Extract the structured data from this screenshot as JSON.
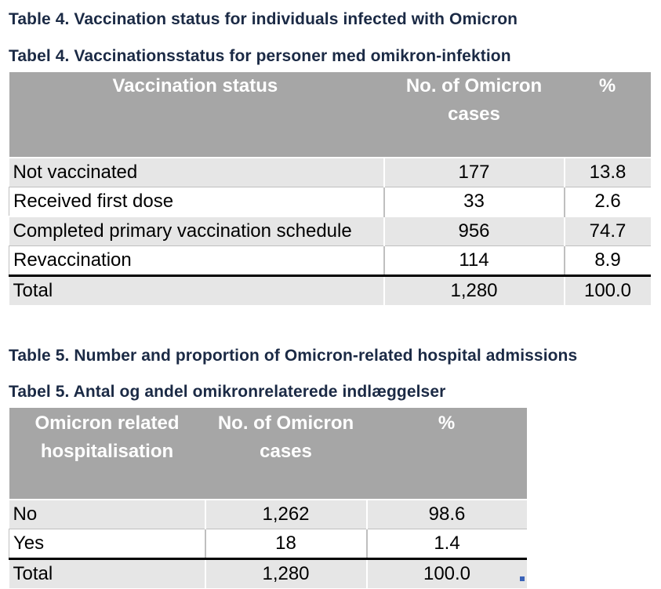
{
  "table4": {
    "title_en": "Table 4. Vaccination status for individuals infected with Omicron",
    "title_da": "Tabel 4. Vaccinationsstatus for personer med omikron-infektion",
    "headers": [
      "Vaccination status",
      "No. of Omicron cases",
      "%"
    ],
    "rows": [
      {
        "label": "Not vaccinated",
        "cases": "177",
        "pct": "13.8"
      },
      {
        "label": "Received first dose",
        "cases": "33",
        "pct": "2.6"
      },
      {
        "label": "Completed primary vaccination schedule",
        "cases": "956",
        "pct": "74.7"
      },
      {
        "label": "Revaccination",
        "cases": "114",
        "pct": "8.9"
      }
    ],
    "total": {
      "label": "Total",
      "cases": "1,280",
      "pct": "100.0"
    }
  },
  "table5": {
    "title_en": "Table 5. Number and proportion of Omicron-related hospital admissions",
    "title_da": "Tabel 5. Antal og andel omikronrelaterede indlæggelser",
    "headers": [
      "Omicron related hospitalisation",
      "No. of Omicron cases",
      "%"
    ],
    "rows": [
      {
        "label": "No",
        "cases": "1,262",
        "pct": "98.6"
      },
      {
        "label": "Yes",
        "cases": "18",
        "pct": "1.4"
      }
    ],
    "total": {
      "label": "Total",
      "cases": "1,280",
      "pct": "100.0"
    }
  }
}
